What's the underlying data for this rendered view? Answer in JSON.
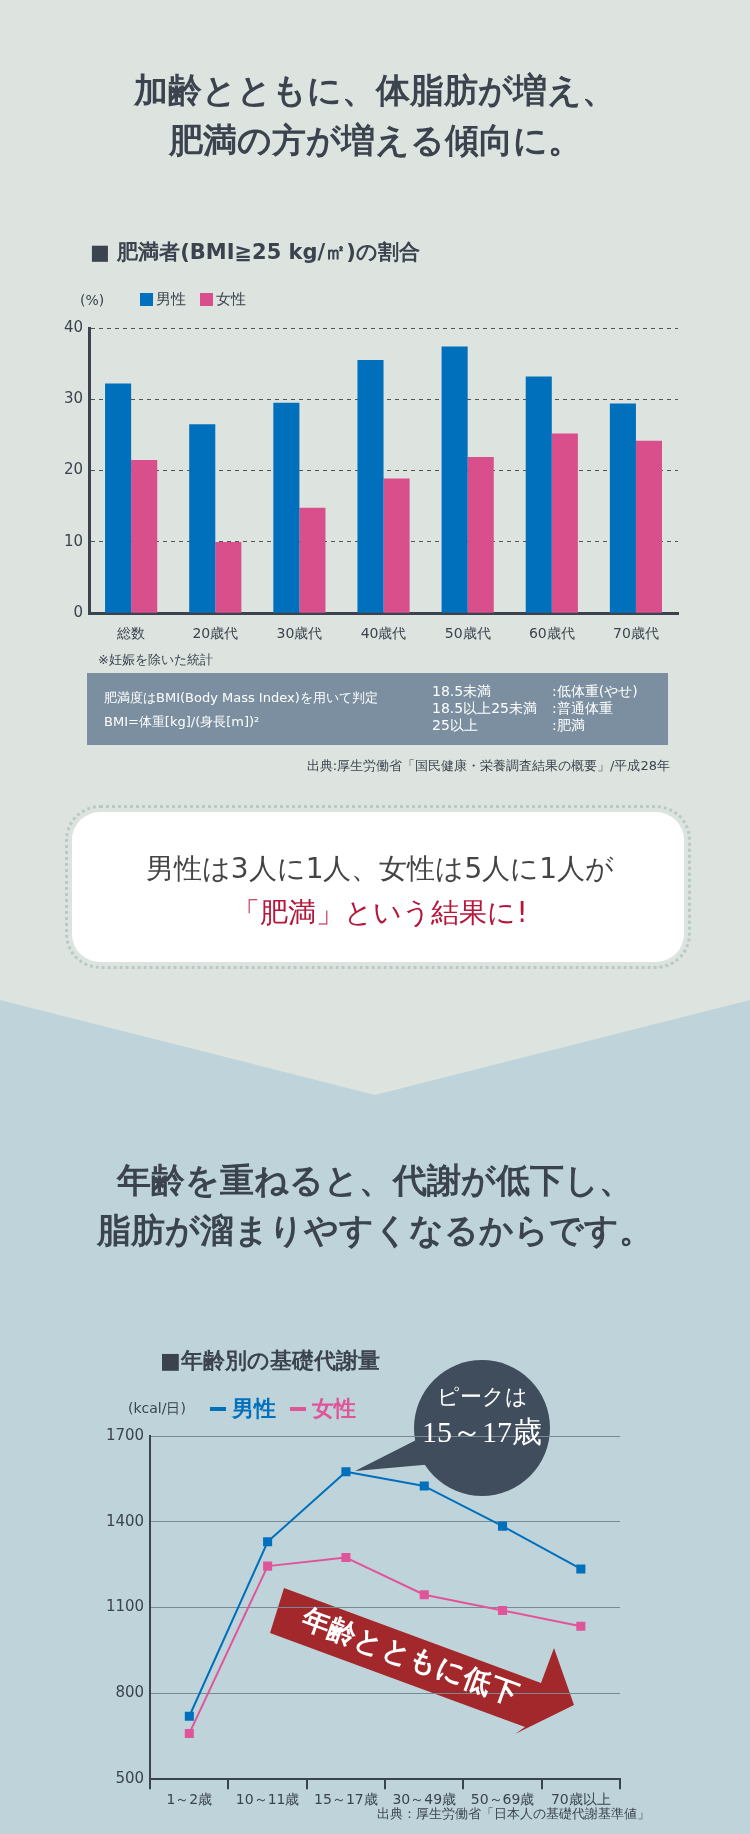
{
  "chart_data": [
    {
      "type": "bar",
      "title": "■ 肥満者(BMI≧25 kg/㎡)の割合",
      "ylabel": "(%)",
      "categories": [
        "総数",
        "20歳代",
        "30歳代",
        "40歳代",
        "50歳代",
        "60歳代",
        "70歳代"
      ],
      "series": [
        {
          "name": "男性",
          "color": "#0070bd",
          "values": [
            32.2,
            26.5,
            29.5,
            35.5,
            37.4,
            33.2,
            29.4
          ]
        },
        {
          "name": "女性",
          "color": "#d94f8c",
          "values": [
            21.5,
            10.0,
            14.8,
            18.9,
            21.9,
            25.2,
            24.2
          ]
        }
      ],
      "ylim": [
        0,
        40
      ],
      "yticks": [
        0,
        10,
        20,
        30,
        40
      ],
      "grid": "y",
      "legend": "top left",
      "annotations": [
        "加齢とともに、体脂肪が増え、",
        "肥満の方が増える傾向に。",
        "※妊娠を除いた統計",
        "肥満度はBMI(Body Mass Index)を用いて判定",
        "BMI=体重[kg]/(身長[m])²",
        "18.5未満",
        ":低体重(やせ)",
        "18.5以上25未満",
        ":普通体重",
        "25以上",
        ":肥満",
        "出典:厚生労働省「国民健康・栄養調査結果の概要」/平成28年",
        "男性は3人に1人、女性は5人に1人が",
        "「肥満」という結果に!"
      ]
    },
    {
      "type": "line",
      "title": "■年齢別の基礎代謝量",
      "ylabel": "(kcal/日)",
      "categories": [
        "1～2歳",
        "10～11歳",
        "15～17歳",
        "30～49歳",
        "50～69歳",
        "70歳以上"
      ],
      "series": [
        {
          "name": "男性",
          "color": "#0070bd",
          "values": [
            720,
            1330,
            1575,
            1525,
            1385,
            1235
          ]
        },
        {
          "name": "女性",
          "color": "#e0549a",
          "values": [
            660,
            1245,
            1275,
            1145,
            1090,
            1035
          ]
        }
      ],
      "ylim": [
        500,
        1700
      ],
      "yticks": [
        500,
        800,
        1100,
        1400,
        1700
      ],
      "grid": "y",
      "legend": "top left",
      "marker": "square",
      "line_style": "solid",
      "annotations": [
        "年齢を重ねると、代謝が低下し、",
        "脂肪が溜まりやすくなるからです。",
        "ピークは",
        "15～17歳",
        "年齢とともに低下",
        "出典：厚生労働省「日本人の基礎代謝基準値」"
      ]
    }
  ]
}
